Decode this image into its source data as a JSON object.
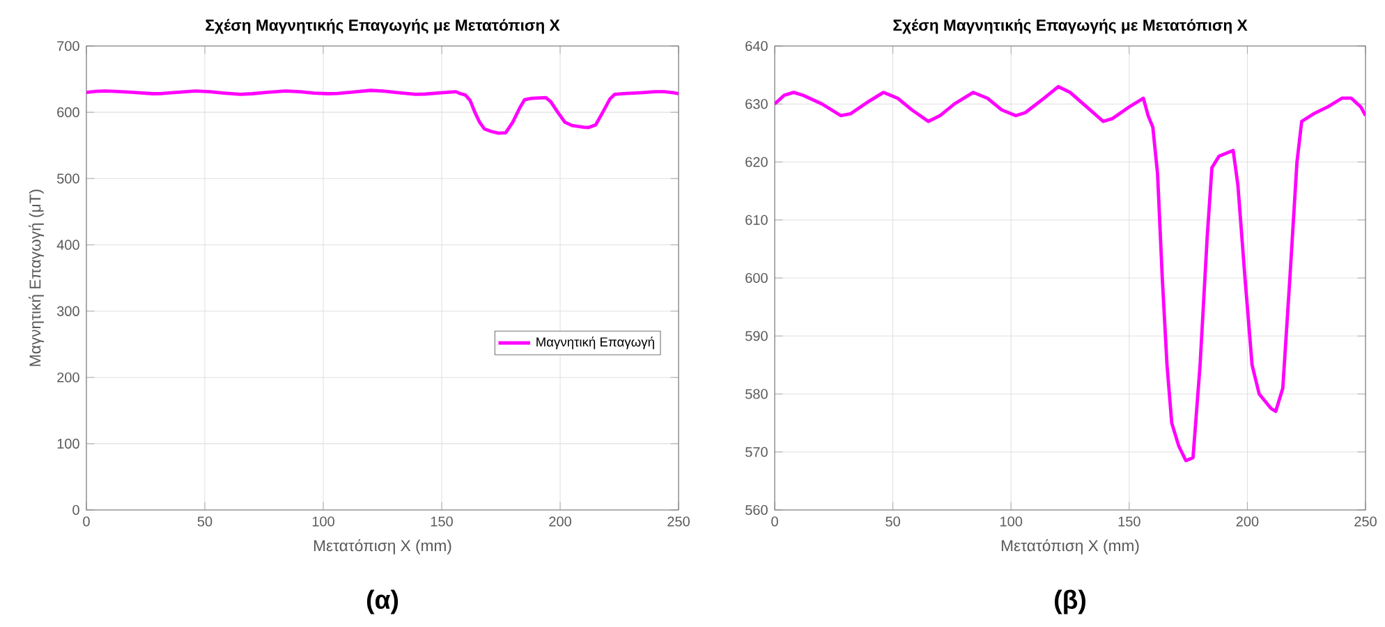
{
  "chart_data": [
    {
      "type": "line",
      "title": "Σχέση Μαγνητικής Επαγωγής με Μετατόπιση Χ",
      "xlabel": "Μετατόπιση Χ (mm)",
      "ylabel": "Μαγνητική Επαγωγή (μT)",
      "x": [
        0,
        4,
        8,
        12,
        20,
        28,
        32,
        40,
        46,
        52,
        58,
        65,
        70,
        76,
        84,
        90,
        96,
        102,
        106,
        114,
        120,
        125,
        132,
        139,
        143,
        150,
        156,
        158,
        160,
        162,
        164,
        166,
        168,
        171,
        174,
        177,
        180,
        183,
        185,
        188,
        194,
        196,
        199,
        202,
        205,
        210,
        212,
        215,
        218,
        221,
        223,
        228,
        234,
        240,
        244,
        248,
        250
      ],
      "series": [
        {
          "name": "Μαγνητική Επαγωγή",
          "color": "#ff00ff",
          "values": [
            630,
            631.5,
            632,
            631.5,
            630,
            628,
            628.3,
            630.5,
            632,
            631,
            629,
            627,
            628,
            630,
            632,
            631,
            629,
            628,
            628.5,
            631,
            633,
            632,
            629.5,
            627,
            627.5,
            629.5,
            631,
            628,
            626,
            618,
            600,
            585,
            575,
            571,
            568.5,
            569,
            585,
            607,
            619,
            621,
            622,
            616,
            600,
            585,
            580,
            577.5,
            577,
            581,
            600,
            620,
            627,
            628.3,
            629.5,
            631,
            631,
            629.5,
            628
          ]
        }
      ],
      "xlim": [
        0,
        250
      ],
      "ylim": [
        0,
        700
      ],
      "xticks": [
        0,
        50,
        100,
        150,
        200,
        250
      ],
      "yticks": [
        0,
        100,
        200,
        300,
        400,
        500,
        600,
        700
      ],
      "grid": true,
      "legend": "right",
      "annotations": [
        "(α)"
      ]
    },
    {
      "type": "line",
      "title": "Σχέση Μαγνητικής Επαγωγής με Μετατόπιση Χ",
      "xlabel": "Μετατόπιση Χ (mm)",
      "x": [
        0,
        4,
        8,
        12,
        20,
        28,
        32,
        40,
        46,
        52,
        58,
        65,
        70,
        76,
        84,
        90,
        96,
        102,
        106,
        114,
        120,
        125,
        132,
        139,
        143,
        150,
        156,
        158,
        160,
        162,
        164,
        166,
        168,
        171,
        174,
        177,
        180,
        183,
        185,
        188,
        194,
        196,
        199,
        202,
        205,
        210,
        212,
        215,
        218,
        221,
        223,
        228,
        234,
        240,
        244,
        248,
        250
      ],
      "series": [
        {
          "color": "#ff00ff",
          "values": [
            630,
            631.5,
            632,
            631.5,
            630,
            628,
            628.3,
            630.5,
            632,
            631,
            629,
            627,
            628,
            630,
            632,
            631,
            629,
            628,
            628.5,
            631,
            633,
            632,
            629.5,
            627,
            627.5,
            629.5,
            631,
            628,
            626,
            618,
            600,
            585,
            575,
            571,
            568.5,
            569,
            585,
            607,
            619,
            621,
            622,
            616,
            600,
            585,
            580,
            577.5,
            577,
            581,
            600,
            620,
            627,
            628.3,
            629.5,
            631,
            631,
            629.5,
            628
          ]
        }
      ],
      "xlim": [
        0,
        250
      ],
      "ylim": [
        560,
        640
      ],
      "xticks": [
        0,
        50,
        100,
        150,
        200,
        250
      ],
      "yticks": [
        560,
        570,
        580,
        590,
        600,
        610,
        620,
        630,
        640
      ],
      "grid": true,
      "annotations": [
        "(β)"
      ]
    }
  ]
}
